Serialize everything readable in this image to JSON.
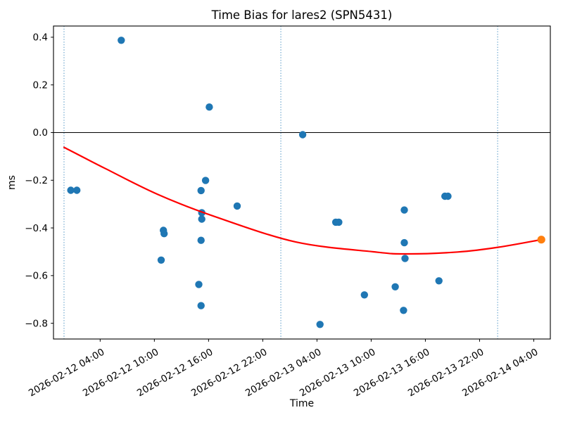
{
  "figure": {
    "background": "#ffffff"
  },
  "chart_data": {
    "type": "scatter",
    "title": "Time Bias for lares2 (SPN5431)",
    "xlabel": "Time",
    "ylabel": "ms",
    "grid": false,
    "legend": false,
    "time_origin": "2026-02-12 00:00",
    "xlim": [
      "2026-02-11 22:50",
      "2026-02-14 05:50"
    ],
    "ylim": [
      -0.866,
      0.447
    ],
    "x_ticks": [
      "2026-02-12 04:00",
      "2026-02-12 10:00",
      "2026-02-12 16:00",
      "2026-02-12 22:00",
      "2026-02-13 04:00",
      "2026-02-13 10:00",
      "2026-02-13 16:00",
      "2026-02-13 22:00",
      "2026-02-14 04:00"
    ],
    "y_ticks": [
      {
        "value": 0.4,
        "label": "0.4"
      },
      {
        "value": 0.2,
        "label": "0.2"
      },
      {
        "value": 0.0,
        "label": "0.0"
      },
      {
        "value": -0.2,
        "label": "−0.2"
      },
      {
        "value": -0.4,
        "label": "−0.4"
      },
      {
        "value": -0.6,
        "label": "−0.6"
      },
      {
        "value": -0.8,
        "label": "−0.8"
      }
    ],
    "zero_line_value": 0.0,
    "day_boundaries": [
      "2026-02-12 00:00",
      "2026-02-13 00:00",
      "2026-02-14 00:00"
    ],
    "colors": {
      "observations": "#1f77b4",
      "fit_curve": "#ff0000",
      "fit_endpoint": "#ff7f0e",
      "day_boundary": "#1f77b4",
      "zero_line": "#000000",
      "spine": "#000000"
    },
    "series": [
      {
        "name": "time-bias-observations",
        "type": "scatter",
        "color": "#1f77b4",
        "points": [
          {
            "time": "2026-02-12 00:45",
            "ms": -0.242
          },
          {
            "time": "2026-02-12 01:25",
            "ms": -0.242
          },
          {
            "time": "2026-02-12 06:20",
            "ms": 0.387
          },
          {
            "time": "2026-02-12 10:45",
            "ms": -0.535
          },
          {
            "time": "2026-02-12 11:00",
            "ms": -0.41
          },
          {
            "time": "2026-02-12 11:05",
            "ms": -0.424
          },
          {
            "time": "2026-02-12 14:55",
            "ms": -0.637
          },
          {
            "time": "2026-02-12 15:10",
            "ms": -0.243
          },
          {
            "time": "2026-02-12 15:10",
            "ms": -0.452
          },
          {
            "time": "2026-02-12 15:10",
            "ms": -0.726
          },
          {
            "time": "2026-02-12 15:15",
            "ms": -0.336
          },
          {
            "time": "2026-02-12 15:15",
            "ms": -0.363
          },
          {
            "time": "2026-02-12 15:40",
            "ms": -0.201
          },
          {
            "time": "2026-02-12 16:05",
            "ms": 0.107
          },
          {
            "time": "2026-02-12 19:10",
            "ms": -0.308
          },
          {
            "time": "2026-02-13 02:25",
            "ms": -0.009
          },
          {
            "time": "2026-02-13 04:20",
            "ms": -0.805
          },
          {
            "time": "2026-02-13 06:05",
            "ms": -0.376
          },
          {
            "time": "2026-02-13 06:25",
            "ms": -0.376
          },
          {
            "time": "2026-02-13 09:15",
            "ms": -0.681
          },
          {
            "time": "2026-02-13 12:40",
            "ms": -0.647
          },
          {
            "time": "2026-02-13 13:35",
            "ms": -0.746
          },
          {
            "time": "2026-02-13 13:40",
            "ms": -0.325
          },
          {
            "time": "2026-02-13 13:40",
            "ms": -0.462
          },
          {
            "time": "2026-02-13 13:45",
            "ms": -0.528
          },
          {
            "time": "2026-02-13 17:30",
            "ms": -0.622
          },
          {
            "time": "2026-02-13 18:10",
            "ms": -0.267
          },
          {
            "time": "2026-02-13 18:30",
            "ms": -0.267
          }
        ]
      },
      {
        "name": "fit-extrapolated-point",
        "type": "scatter",
        "color": "#ff7f0e",
        "points": [
          {
            "time": "2026-02-14 04:50",
            "ms": -0.449
          }
        ]
      },
      {
        "name": "polynomial-fit",
        "type": "line",
        "color": "#ff0000",
        "points": [
          {
            "time": "2026-02-12 00:00",
            "ms": -0.062
          },
          {
            "time": "2026-02-12 04:35",
            "ms": -0.151
          },
          {
            "time": "2026-02-12 10:25",
            "ms": -0.26
          },
          {
            "time": "2026-02-12 16:40",
            "ms": -0.352
          },
          {
            "time": "2026-02-13 01:40",
            "ms": -0.459
          },
          {
            "time": "2026-02-13 10:15",
            "ms": -0.5
          },
          {
            "time": "2026-02-13 13:45",
            "ms": -0.509
          },
          {
            "time": "2026-02-13 19:35",
            "ms": -0.501
          },
          {
            "time": "2026-02-14 00:05",
            "ms": -0.481
          },
          {
            "time": "2026-02-14 04:50",
            "ms": -0.449
          }
        ]
      }
    ]
  }
}
